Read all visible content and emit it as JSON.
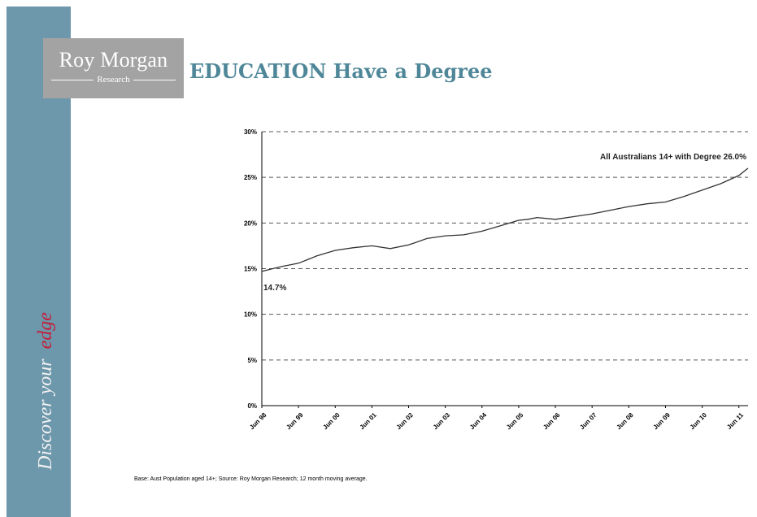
{
  "branding": {
    "logo_name": "Roy Morgan",
    "logo_sub": "Research",
    "tagline_prefix": "Discover your",
    "tagline_accent": "edge",
    "sidebar_color": "#6d97ab",
    "accent_color": "#c41e3a"
  },
  "page": {
    "title": "EDUCATION Have a Degree",
    "source_note": "Base: Aust Population aged 14+; Source: Roy Morgan Research; 12 month moving average."
  },
  "chart_data": {
    "type": "line",
    "title": "",
    "xlabel": "",
    "ylabel": "",
    "ylim": [
      0,
      30
    ],
    "yticks": [
      "0%",
      "5%",
      "10%",
      "15%",
      "20%",
      "25%",
      "30%"
    ],
    "ytick_values": [
      0,
      5,
      10,
      15,
      20,
      25,
      30
    ],
    "xtick_labels": [
      "Jun 98",
      "Jun 99",
      "Jun 00",
      "Jun 01",
      "Jun 02",
      "Jun 03",
      "Jun 04",
      "Jun 05",
      "Jun 06",
      "Jun 07",
      "Jun 08",
      "Jun 09",
      "Jun 10",
      "Jun 11"
    ],
    "grid": "horizontal dashed",
    "series": [
      {
        "name": "All Australians 14+ with Degree",
        "color": "#333333",
        "x": [
          1998.0,
          1998.5,
          1999.0,
          1999.5,
          2000.0,
          2000.5,
          2001.0,
          2001.5,
          2002.0,
          2002.5,
          2003.0,
          2003.5,
          2004.0,
          2004.5,
          2005.0,
          2005.25,
          2005.5,
          2006.0,
          2006.5,
          2007.0,
          2007.5,
          2008.0,
          2008.5,
          2009.0,
          2009.5,
          2010.0,
          2010.5,
          2011.0,
          2011.25
        ],
        "values": [
          14.7,
          15.2,
          15.6,
          16.4,
          17.0,
          17.3,
          17.5,
          17.2,
          17.6,
          18.3,
          18.6,
          18.7,
          19.1,
          19.7,
          20.3,
          20.4,
          20.6,
          20.4,
          20.7,
          21.0,
          21.4,
          21.8,
          22.1,
          22.3,
          22.9,
          23.6,
          24.3,
          25.2,
          26.0
        ]
      }
    ],
    "annotations": [
      {
        "text": "14.7%"
      },
      {
        "text": "All Australians 14+ with Degree  26.0%"
      }
    ]
  }
}
